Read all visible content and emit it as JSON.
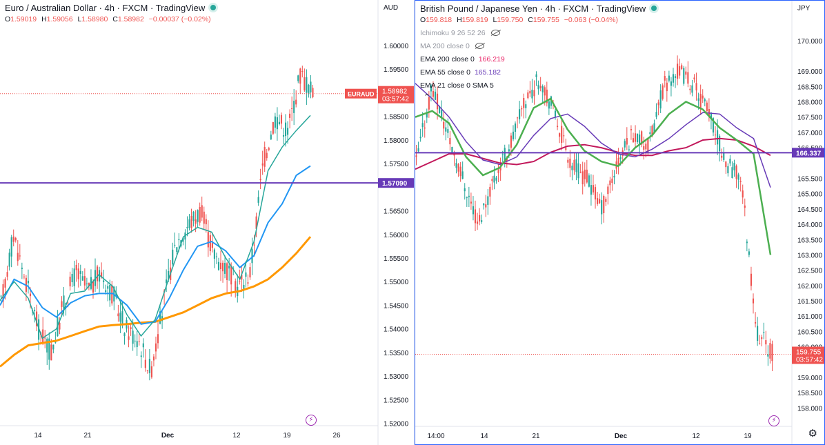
{
  "left": {
    "title": "Euro / Australian Dollar · 4h · FXCM · TradingView",
    "ohlc": {
      "o": "1.59019",
      "h": "1.59056",
      "l": "1.58980",
      "c": "1.58982",
      "chg": "−0.00037 (−0.02%)"
    },
    "currency": "AUD",
    "symbol_tag": "EURAUD",
    "price_label": "1.58982",
    "countdown": "03:57:42",
    "hline_label": "1.57090",
    "y_ticks": [
      "1.60000",
      "1.59500",
      "1.58500",
      "1.58000",
      "1.57500",
      "1.56500",
      "1.56000",
      "1.55500",
      "1.55000",
      "1.54500",
      "1.54000",
      "1.53500",
      "1.53000",
      "1.52500",
      "1.52000"
    ],
    "x_ticks": [
      "14",
      "21",
      "Dec",
      "12",
      "19",
      "26"
    ],
    "chart_data": {
      "type": "candlestick",
      "ylim": [
        1.5195,
        1.6038
      ],
      "hline": 1.5709,
      "last_price": 1.58982,
      "colors": {
        "up": "#26a69a",
        "down": "#ef5350",
        "hline": "#673ab7",
        "ema_slow": "#ff9800",
        "ema_mid": "#2196f3",
        "ema_fast": "#26a69a"
      },
      "ema_slow": [
        1.532,
        1.5345,
        1.5365,
        1.537,
        1.5375,
        1.5385,
        1.5395,
        1.5405,
        1.5408,
        1.541,
        1.5413,
        1.5415,
        1.5425,
        1.5435,
        1.545,
        1.5465,
        1.5475,
        1.548,
        1.549,
        1.5505,
        1.553,
        1.556,
        1.5595
      ],
      "ema_mid": [
        1.545,
        1.5505,
        1.549,
        1.5445,
        1.5425,
        1.5455,
        1.547,
        1.5475,
        1.5475,
        1.545,
        1.541,
        1.5415,
        1.5465,
        1.5525,
        1.5575,
        1.5585,
        1.5565,
        1.553,
        1.5555,
        1.5625,
        1.5665,
        1.5725,
        1.5745
      ],
      "ema_fast": [
        1.546,
        1.55,
        1.5465,
        1.538,
        1.54,
        1.5475,
        1.548,
        1.5515,
        1.549,
        1.543,
        1.5385,
        1.542,
        1.551,
        1.5595,
        1.5615,
        1.5605,
        1.555,
        1.5505,
        1.5585,
        1.5735,
        1.5785,
        1.582,
        1.5852
      ]
    }
  },
  "right": {
    "title": "British Pound / Japanese Yen · 4h · FXCM · TradingView",
    "ohlc": {
      "o": "159.818",
      "h": "159.819",
      "l": "159.750",
      "c": "159.755",
      "chg": "−0.063 (−0.04%)"
    },
    "indicators": [
      {
        "label": "Ichimoku 9 26 52 26",
        "value": "",
        "hidden": true
      },
      {
        "label": "MA 200 close 0",
        "value": "",
        "hidden": true
      },
      {
        "label": "EMA 200 close 0",
        "value": "166.219",
        "color": "#e91e63"
      },
      {
        "label": "EMA 55 close 0",
        "value": "165.182",
        "color": "#673ab7"
      },
      {
        "label": "EMA 21 close 0 SMA 5",
        "value": "",
        "color": "#131722"
      }
    ],
    "currency": "JPY",
    "price_label": "159.755",
    "countdown": "03:57:42",
    "hline_label": "166.337",
    "y_ticks": [
      "170.000",
      "169.000",
      "168.500",
      "168.000",
      "167.500",
      "167.000",
      "166.500",
      "165.500",
      "165.000",
      "164.500",
      "164.000",
      "163.500",
      "163.000",
      "162.500",
      "162.000",
      "161.500",
      "161.000",
      "160.500",
      "160.000",
      "159.000",
      "158.500",
      "158.000"
    ],
    "x_ticks": [
      "14:00",
      "14",
      "21",
      "Dec",
      "12",
      "19"
    ],
    "chart_data": {
      "type": "candlestick",
      "ylim": [
        157.4,
        170.4
      ],
      "hline": 166.337,
      "last_price": 159.755,
      "colors": {
        "up": "#26a69a",
        "down": "#ef5350",
        "hline": "#673ab7",
        "ema200": "#c2185b",
        "ema55": "#673ab7",
        "ema21": "#4caf50"
      },
      "ema200": [
        165.8,
        166.05,
        166.3,
        166.3,
        166.15,
        166.0,
        165.95,
        166.05,
        166.35,
        166.55,
        166.6,
        166.5,
        166.35,
        166.25,
        166.25,
        166.4,
        166.5,
        166.75,
        166.8,
        166.75,
        166.55,
        166.25
      ],
      "ema55": [
        168.6,
        168.1,
        167.5,
        166.7,
        166.1,
        165.95,
        166.2,
        166.9,
        167.45,
        167.6,
        167.2,
        166.65,
        166.3,
        166.2,
        166.45,
        166.8,
        167.25,
        167.65,
        167.6,
        167.15,
        166.8,
        165.2
      ],
      "ema21": [
        167.5,
        167.7,
        167.3,
        166.2,
        165.6,
        165.85,
        166.6,
        167.8,
        168.1,
        167.1,
        166.4,
        166.05,
        165.9,
        166.5,
        166.9,
        167.6,
        168.0,
        167.75,
        167.15,
        166.75,
        166.3,
        163.0
      ]
    }
  }
}
